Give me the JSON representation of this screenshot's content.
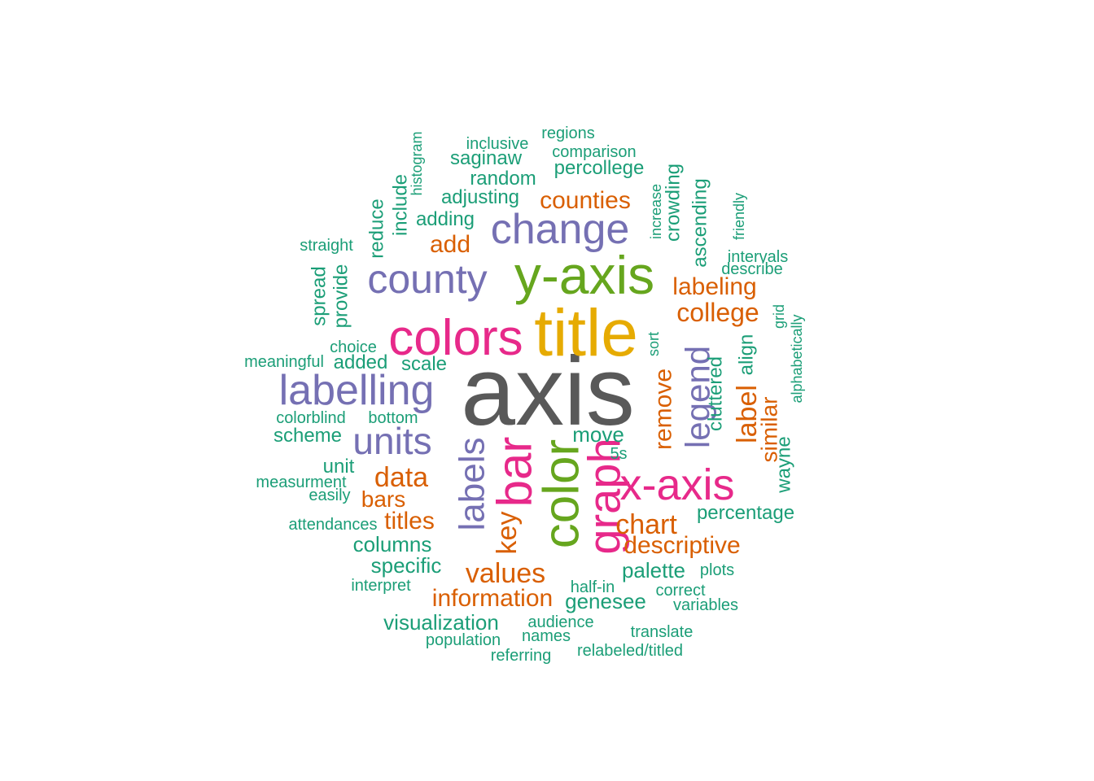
{
  "colors": {
    "c1": "#1b9e77",
    "c2": "#d95f02",
    "c3": "#7570b3",
    "c4": "#e7298a",
    "c5": "#66a61e",
    "c6": "#e6ab02",
    "c7": "#595959"
  },
  "words": [
    {
      "text": "axis",
      "color": "c7"
    },
    {
      "text": "title",
      "color": "c6"
    },
    {
      "text": "y-axis",
      "color": "c5"
    },
    {
      "text": "color",
      "color": "c5"
    },
    {
      "text": "colors",
      "color": "c4"
    },
    {
      "text": "x-axis",
      "color": "c4"
    },
    {
      "text": "bar",
      "color": "c4"
    },
    {
      "text": "graph",
      "color": "c4"
    },
    {
      "text": "change",
      "color": "c3"
    },
    {
      "text": "county",
      "color": "c3"
    },
    {
      "text": "labelling",
      "color": "c3"
    },
    {
      "text": "units",
      "color": "c3"
    },
    {
      "text": "labels",
      "color": "c3"
    },
    {
      "text": "legend",
      "color": "c3"
    },
    {
      "text": "counties",
      "color": "c2"
    },
    {
      "text": "add",
      "color": "c2"
    },
    {
      "text": "labeling",
      "color": "c2"
    },
    {
      "text": "college",
      "color": "c2"
    },
    {
      "text": "remove",
      "color": "c2"
    },
    {
      "text": "label",
      "color": "c2"
    },
    {
      "text": "similar",
      "color": "c2"
    },
    {
      "text": "data",
      "color": "c2"
    },
    {
      "text": "bars",
      "color": "c2"
    },
    {
      "text": "titles",
      "color": "c2"
    },
    {
      "text": "key",
      "color": "c2"
    },
    {
      "text": "chart",
      "color": "c2"
    },
    {
      "text": "descriptive",
      "color": "c2"
    },
    {
      "text": "values",
      "color": "c2"
    },
    {
      "text": "information",
      "color": "c2"
    },
    {
      "text": "regions",
      "color": "c1"
    },
    {
      "text": "inclusive",
      "color": "c1"
    },
    {
      "text": "comparison",
      "color": "c1"
    },
    {
      "text": "saginaw",
      "color": "c1"
    },
    {
      "text": "percollege",
      "color": "c1"
    },
    {
      "text": "random",
      "color": "c1"
    },
    {
      "text": "histogram",
      "color": "c1"
    },
    {
      "text": "adjusting",
      "color": "c1"
    },
    {
      "text": "include",
      "color": "c1"
    },
    {
      "text": "adding",
      "color": "c1"
    },
    {
      "text": "reduce",
      "color": "c1"
    },
    {
      "text": "increase",
      "color": "c1"
    },
    {
      "text": "crowding",
      "color": "c1"
    },
    {
      "text": "ascending",
      "color": "c1"
    },
    {
      "text": "friendly",
      "color": "c1"
    },
    {
      "text": "straight",
      "color": "c1"
    },
    {
      "text": "intervals",
      "color": "c1"
    },
    {
      "text": "describe",
      "color": "c1"
    },
    {
      "text": "spread",
      "color": "c1"
    },
    {
      "text": "provide",
      "color": "c1"
    },
    {
      "text": "grid",
      "color": "c1"
    },
    {
      "text": "alphabetically",
      "color": "c1"
    },
    {
      "text": "choice",
      "color": "c1"
    },
    {
      "text": "meaningful",
      "color": "c1"
    },
    {
      "text": "added",
      "color": "c1"
    },
    {
      "text": "scale",
      "color": "c1"
    },
    {
      "text": "sort",
      "color": "c1"
    },
    {
      "text": "align",
      "color": "c1"
    },
    {
      "text": "cluttered",
      "color": "c1"
    },
    {
      "text": "colorblind",
      "color": "c1"
    },
    {
      "text": "bottom",
      "color": "c1"
    },
    {
      "text": "scheme",
      "color": "c1"
    },
    {
      "text": "move",
      "color": "c1"
    },
    {
      "text": "5s",
      "color": "c1"
    },
    {
      "text": "wayne",
      "color": "c1"
    },
    {
      "text": "unit",
      "color": "c1"
    },
    {
      "text": "measurment",
      "color": "c1"
    },
    {
      "text": "easily",
      "color": "c1"
    },
    {
      "text": "percentage",
      "color": "c1"
    },
    {
      "text": "attendances",
      "color": "c1"
    },
    {
      "text": "columns",
      "color": "c1"
    },
    {
      "text": "specific",
      "color": "c1"
    },
    {
      "text": "palette",
      "color": "c1"
    },
    {
      "text": "plots",
      "color": "c1"
    },
    {
      "text": "interpret",
      "color": "c1"
    },
    {
      "text": "half-in",
      "color": "c1"
    },
    {
      "text": "correct",
      "color": "c1"
    },
    {
      "text": "genesee",
      "color": "c1"
    },
    {
      "text": "variables",
      "color": "c1"
    },
    {
      "text": "visualization",
      "color": "c1"
    },
    {
      "text": "audience",
      "color": "c1"
    },
    {
      "text": "names",
      "color": "c1"
    },
    {
      "text": "translate",
      "color": "c1"
    },
    {
      "text": "population",
      "color": "c1"
    },
    {
      "text": "referring",
      "color": "c1"
    },
    {
      "text": "relabeled/titled",
      "color": "c1"
    }
  ]
}
